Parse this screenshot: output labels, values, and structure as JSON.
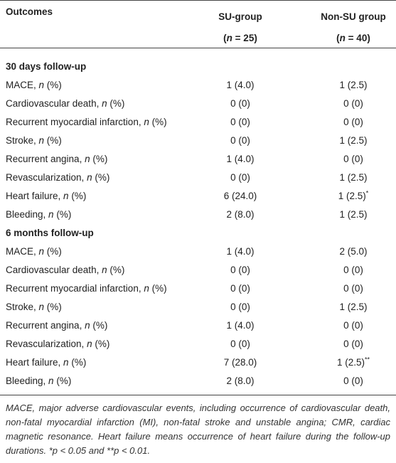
{
  "table": {
    "header": {
      "outcome": "Outcomes",
      "groups": [
        {
          "name": "SU-group",
          "size": [
            "(",
            "n",
            " = 25)"
          ]
        },
        {
          "name": "Non-SU group",
          "size": [
            "(",
            "n",
            " = 40)"
          ]
        }
      ]
    },
    "sections": [
      {
        "title": "30 days follow-up",
        "rows": [
          {
            "label": [
              "MACE, ",
              "n",
              " (%)"
            ],
            "cells": [
              "1 (4.0)",
              "1 (2.5)"
            ]
          },
          {
            "label": [
              "Cardiovascular death, ",
              "n",
              " (%)"
            ],
            "cells": [
              "0 (0)",
              "0 (0)"
            ]
          },
          {
            "label": [
              "Recurrent myocardial infarction, ",
              "n",
              " (%)"
            ],
            "cells": [
              "0 (0)",
              "0 (0)"
            ]
          },
          {
            "label": [
              "Stroke, ",
              "n",
              " (%)"
            ],
            "cells": [
              "0 (0)",
              "1 (2.5)"
            ]
          },
          {
            "label": [
              "Recurrent angina, ",
              "n",
              " (%)"
            ],
            "cells": [
              "1 (4.0)",
              "0 (0)"
            ]
          },
          {
            "label": [
              "Revascularization, ",
              "n",
              " (%)"
            ],
            "cells": [
              "0 (0)",
              "1 (2.5)"
            ]
          },
          {
            "label": [
              "Heart failure, ",
              "n",
              " (%)"
            ],
            "cells": [
              "6 (24.0)",
              {
                "text": "1 (2.5)",
                "sup": "*"
              }
            ]
          },
          {
            "label": [
              "Bleeding, ",
              "n",
              " (%)"
            ],
            "cells": [
              "2 (8.0)",
              "1 (2.5)"
            ]
          }
        ]
      },
      {
        "title": "6 months follow-up",
        "rows": [
          {
            "label": [
              "MACE, ",
              "n",
              " (%)"
            ],
            "cells": [
              "1 (4.0)",
              "2 (5.0)"
            ]
          },
          {
            "label": [
              "Cardiovascular death, ",
              "n",
              " (%)"
            ],
            "cells": [
              "0 (0)",
              "0 (0)"
            ]
          },
          {
            "label": [
              "Recurrent myocardial infarction, ",
              "n",
              " (%)"
            ],
            "cells": [
              "0 (0)",
              "0 (0)"
            ]
          },
          {
            "label": [
              "Stroke, ",
              "n",
              " (%)"
            ],
            "cells": [
              "0 (0)",
              "1 (2.5)"
            ]
          },
          {
            "label": [
              "Recurrent angina, ",
              "n",
              " (%)"
            ],
            "cells": [
              "1 (4.0)",
              "0 (0)"
            ]
          },
          {
            "label": [
              "Revascularization, ",
              "n",
              " (%)"
            ],
            "cells": [
              "0 (0)",
              "0 (0)"
            ]
          },
          {
            "label": [
              "Heart failure, ",
              "n",
              " (%)"
            ],
            "cells": [
              "7 (28.0)",
              {
                "text": "1 (2.5)",
                "sup": "**"
              }
            ]
          },
          {
            "label": [
              "Bleeding, ",
              "n",
              " (%)"
            ],
            "cells": [
              "2 (8.0)",
              "0 (0)"
            ]
          }
        ]
      }
    ],
    "footnote": "MACE, major adverse cardiovascular events, including occurrence of cardiovascular death, non-fatal myocardial infarction (MI), non-fatal stroke and unstable angina; CMR, cardiac magnetic resonance. Heart failure means occurrence of heart failure during the follow-up durations. *p < 0.05 and **p < 0.01."
  }
}
